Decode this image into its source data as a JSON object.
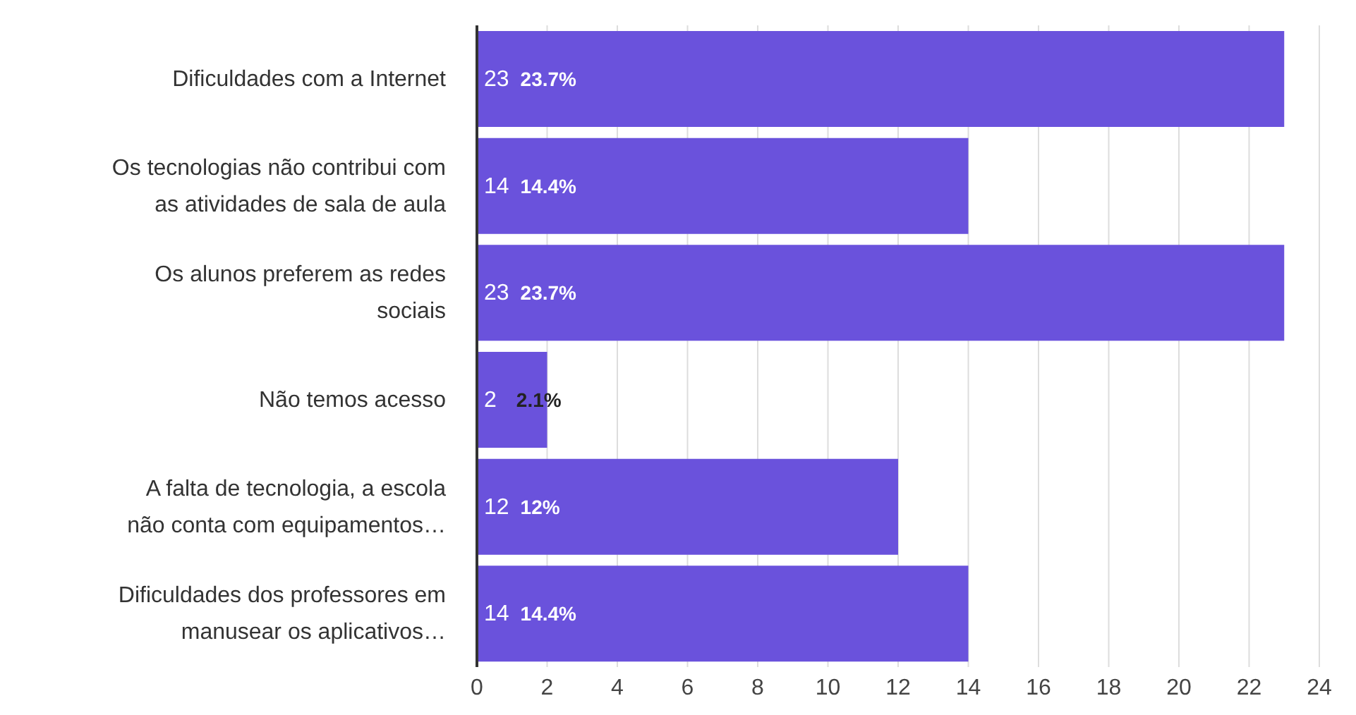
{
  "chart_data": {
    "type": "bar",
    "orientation": "horizontal",
    "categories": [
      "Dificuldades com a Internet",
      "Os tecnologias não contribui com as atividades de sala de aula",
      "Os alunos preferem as redes sociais",
      "Não temos acesso",
      "A falta de tecnologia, a escola não conta com equipamentos…",
      "Dificuldades dos professores em manusear os aplicativos…"
    ],
    "values": [
      23,
      14,
      23,
      2,
      12,
      14
    ],
    "value_labels": [
      "23  23.7%",
      "14  14.4%",
      "23  23.7%",
      "2  2.1%",
      "12  12%",
      "14  14.4%"
    ],
    "color": "#6a52dc",
    "xlim": [
      0,
      24
    ],
    "xticks": [
      0,
      2,
      4,
      6,
      8,
      10,
      12,
      14,
      16,
      18,
      20,
      22,
      24
    ],
    "grid": "x",
    "legend": false
  }
}
